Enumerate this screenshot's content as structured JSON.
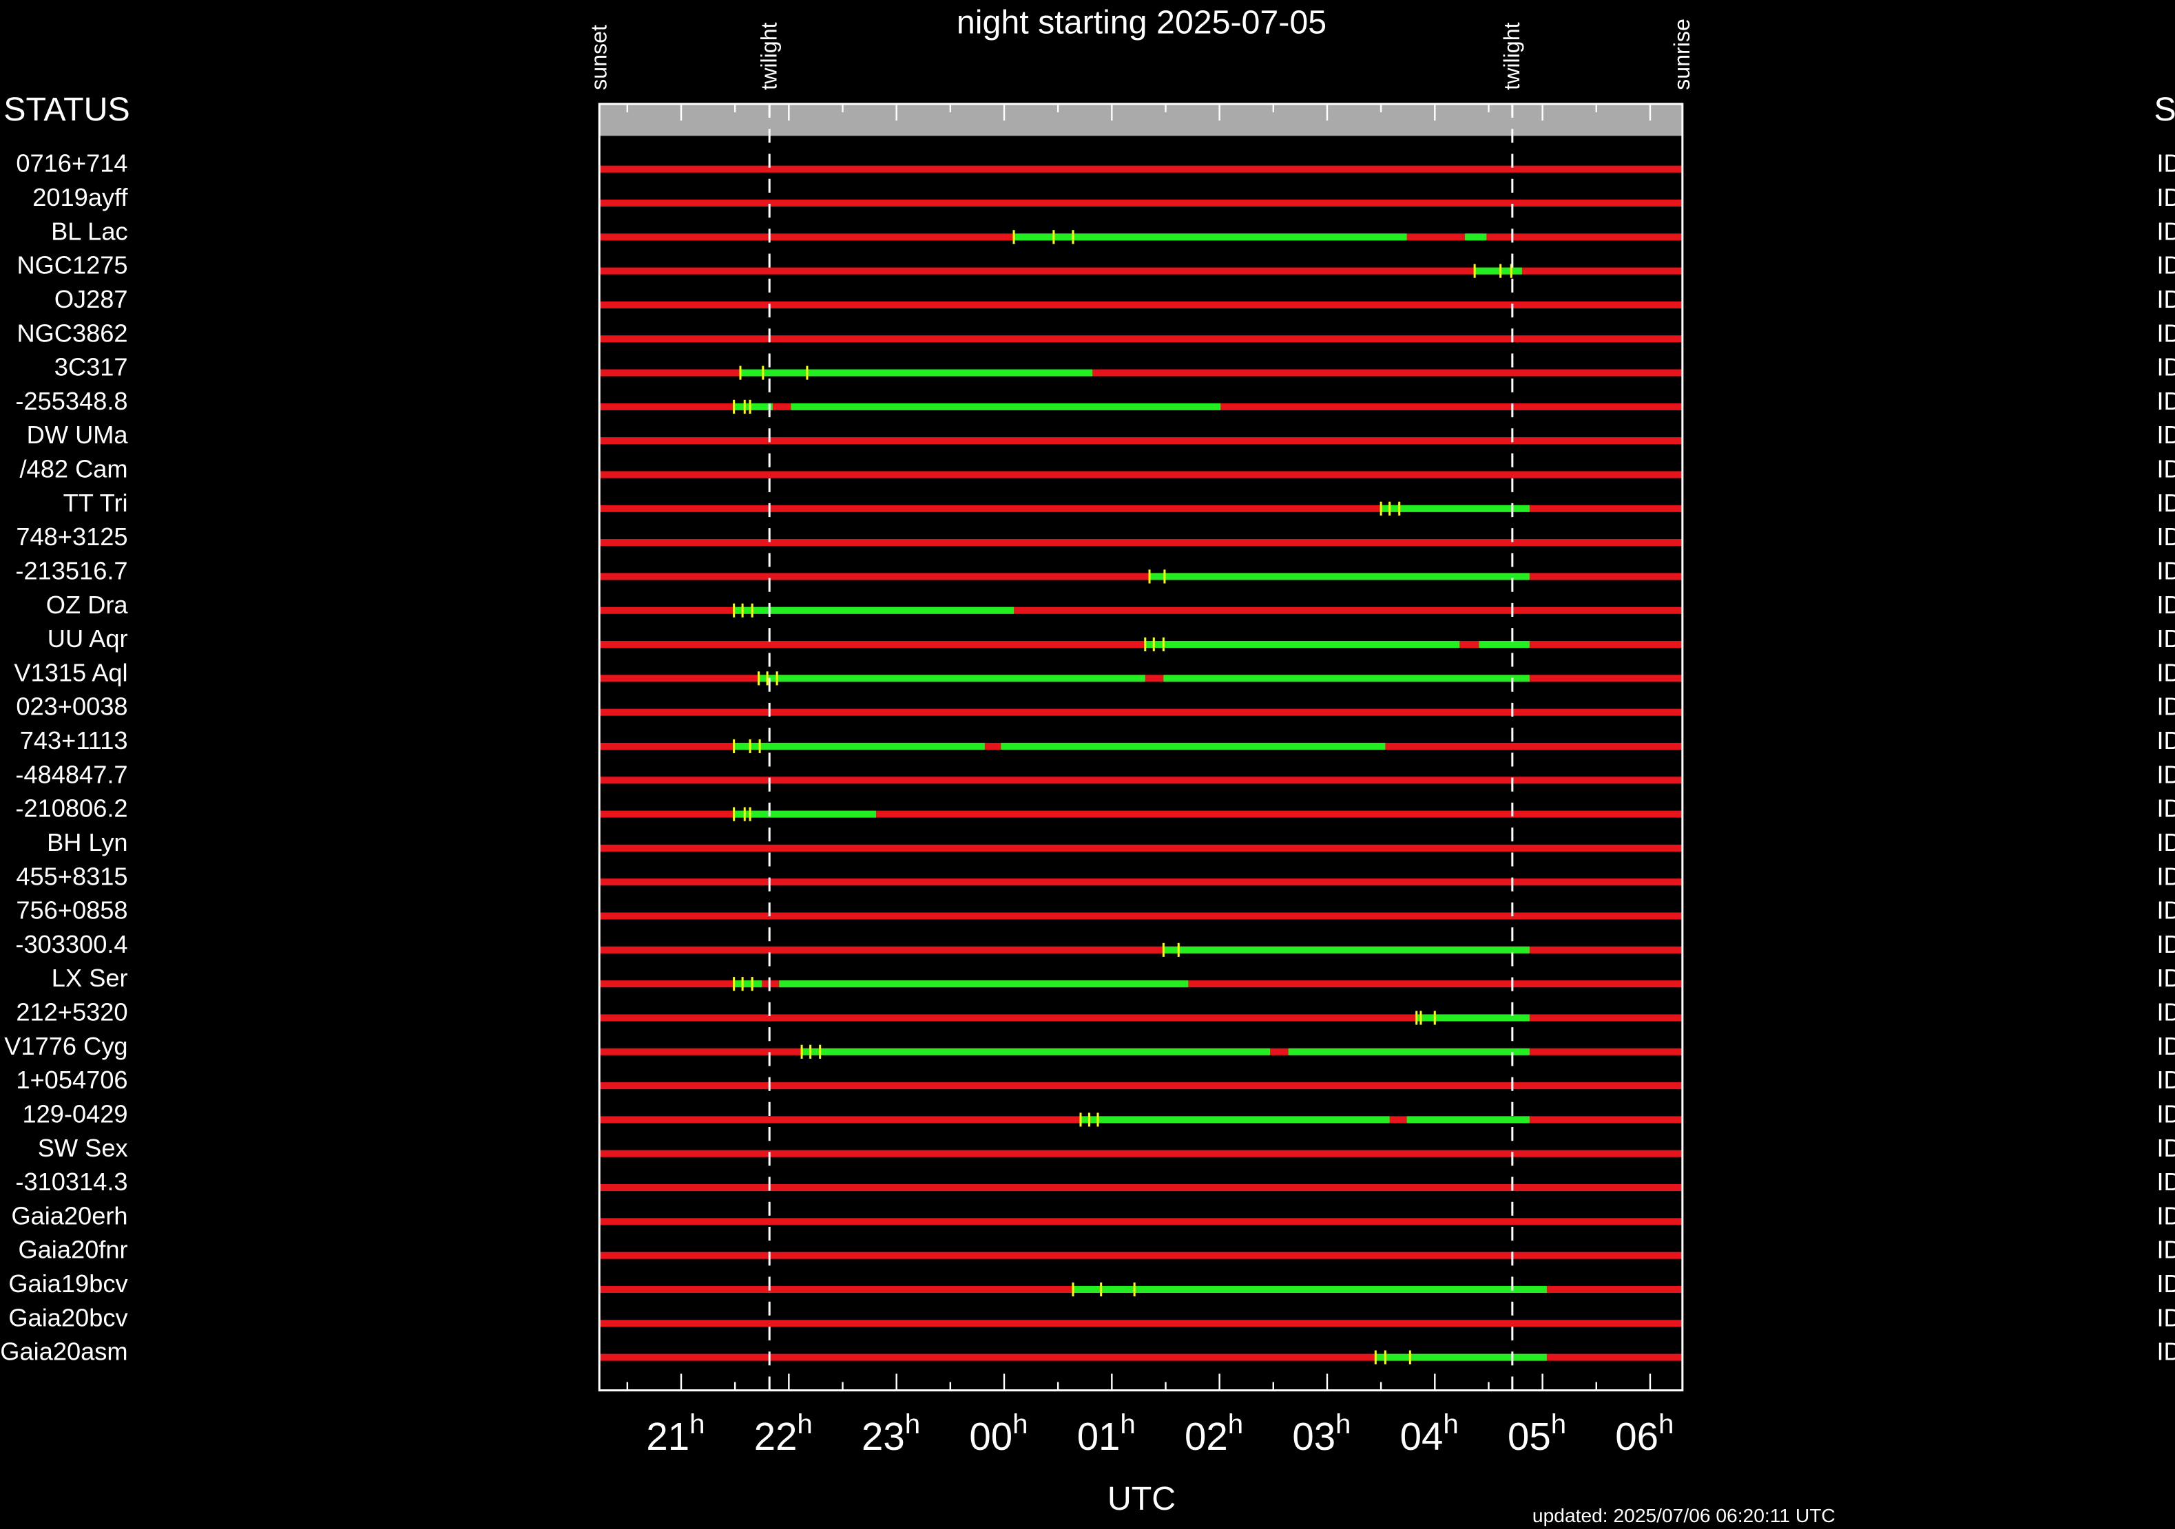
{
  "chart_data": {
    "type": "timeline",
    "title": "night starting 2025-07-05",
    "x_label": "UTC",
    "updated": "updated: 2025/07/06 06:20:11 UTC",
    "status_header": "STATUS",
    "tick_unit": "h",
    "xlim": [
      20.24,
      30.3
    ],
    "xticks": [
      {
        "value": 21,
        "label": "21"
      },
      {
        "value": 22,
        "label": "22"
      },
      {
        "value": 23,
        "label": "23"
      },
      {
        "value": 24,
        "label": "00"
      },
      {
        "value": 25,
        "label": "01"
      },
      {
        "value": 26,
        "label": "02"
      },
      {
        "value": 27,
        "label": "03"
      },
      {
        "value": 28,
        "label": "04"
      },
      {
        "value": 29,
        "label": "05"
      },
      {
        "value": 30,
        "label": "06"
      }
    ],
    "xminor_ticks": [
      20.5,
      21.5,
      22.5,
      23.5,
      24.5,
      25.5,
      26.5,
      27.5,
      28.5,
      29.5
    ],
    "events": [
      {
        "label": "sunset",
        "x": 20.24,
        "line": "none"
      },
      {
        "label": "twilight",
        "x": 21.82,
        "line": "dashed"
      },
      {
        "label": "twilight",
        "x": 28.72,
        "line": "dashed"
      },
      {
        "label": "sunrise",
        "x": 30.3,
        "line": "none"
      }
    ],
    "colors": {
      "unavailable": "#e8141c",
      "window": "#22ee22",
      "marker": "#ffff00",
      "band": "#aaaaaa"
    },
    "rows": [
      {
        "name": "0716+714",
        "status": "ID",
        "windows": [],
        "markers": []
      },
      {
        "name": "2019ayff",
        "status": "ID",
        "windows": [],
        "markers": []
      },
      {
        "name": "BL Lac",
        "status": "ID",
        "windows": [
          [
            24.09,
            27.74
          ],
          [
            28.28,
            28.48
          ]
        ],
        "markers": [
          24.09,
          24.46,
          24.64
        ]
      },
      {
        "name": "NGC1275",
        "status": "ID",
        "windows": [
          [
            28.37,
            28.81
          ]
        ],
        "markers": [
          28.37,
          28.61,
          28.71
        ]
      },
      {
        "name": "OJ287",
        "status": "ID",
        "windows": [],
        "markers": []
      },
      {
        "name": "NGC3862",
        "status": "ID",
        "windows": [],
        "markers": []
      },
      {
        "name": "3C317",
        "status": "ID",
        "windows": [
          [
            21.55,
            24.82
          ]
        ],
        "markers": [
          21.55,
          21.76,
          22.17
        ]
      },
      {
        "name": "-255348.8",
        "status": "ID",
        "windows": [
          [
            21.49,
            21.85
          ],
          [
            22.02,
            26.01
          ]
        ],
        "markers": [
          21.49,
          21.59,
          21.64
        ]
      },
      {
        "name": "DW UMa",
        "status": "ID",
        "windows": [],
        "markers": []
      },
      {
        "name": "/482 Cam",
        "status": "ID",
        "windows": [],
        "markers": []
      },
      {
        "name": "TT Tri",
        "status": "ID",
        "windows": [
          [
            27.5,
            28.88
          ]
        ],
        "markers": [
          27.5,
          27.58,
          27.67
        ]
      },
      {
        "name": "748+3125",
        "status": "ID",
        "windows": [],
        "markers": []
      },
      {
        "name": "-213516.7",
        "status": "ID",
        "windows": [
          [
            25.35,
            28.88
          ]
        ],
        "markers": [
          25.35,
          25.49
        ]
      },
      {
        "name": "OZ Dra",
        "status": "ID",
        "windows": [
          [
            21.49,
            24.09
          ]
        ],
        "markers": [
          21.49,
          21.57,
          21.66
        ]
      },
      {
        "name": "UU Aqr",
        "status": "ID",
        "windows": [
          [
            25.31,
            28.23
          ],
          [
            28.41,
            28.88
          ]
        ],
        "markers": [
          25.31,
          25.39,
          25.48
        ]
      },
      {
        "name": "V1315 Aql",
        "status": "ID",
        "windows": [
          [
            21.72,
            25.31
          ],
          [
            25.48,
            28.88
          ]
        ],
        "markers": [
          21.72,
          21.8,
          21.89
        ]
      },
      {
        "name": "023+0038",
        "status": "ID",
        "windows": [],
        "markers": []
      },
      {
        "name": "743+1113",
        "status": "ID",
        "windows": [
          [
            21.49,
            23.82
          ],
          [
            23.97,
            27.54
          ]
        ],
        "markers": [
          21.49,
          21.64,
          21.73
        ]
      },
      {
        "name": "-484847.7",
        "status": "ID",
        "windows": [],
        "markers": []
      },
      {
        "name": "-210806.2",
        "status": "ID",
        "windows": [
          [
            21.49,
            22.81
          ]
        ],
        "markers": [
          21.49,
          21.59,
          21.64
        ]
      },
      {
        "name": "BH Lyn",
        "status": "ID",
        "windows": [],
        "markers": []
      },
      {
        "name": "455+8315",
        "status": "ID",
        "windows": [],
        "markers": []
      },
      {
        "name": "756+0858",
        "status": "ID",
        "windows": [],
        "markers": []
      },
      {
        "name": "-303300.4",
        "status": "ID",
        "windows": [
          [
            25.48,
            28.88
          ]
        ],
        "markers": [
          25.48,
          25.62
        ]
      },
      {
        "name": "LX Ser",
        "status": "ID",
        "windows": [
          [
            21.49,
            21.75
          ],
          [
            21.91,
            25.71
          ]
        ],
        "markers": [
          21.49,
          21.57,
          21.66
        ]
      },
      {
        "name": "212+5320",
        "status": "ID",
        "windows": [
          [
            27.83,
            28.88
          ]
        ],
        "markers": [
          27.83,
          27.87,
          28.0
        ]
      },
      {
        "name": "V1776 Cyg",
        "status": "ID",
        "windows": [
          [
            22.12,
            26.47
          ],
          [
            26.64,
            28.88
          ]
        ],
        "markers": [
          22.12,
          22.2,
          22.29
        ]
      },
      {
        "name": "1+054706",
        "status": "ID",
        "windows": [],
        "markers": []
      },
      {
        "name": "129-0429",
        "status": "ID",
        "windows": [
          [
            24.71,
            27.58
          ],
          [
            27.74,
            28.88
          ]
        ],
        "markers": [
          24.71,
          24.79,
          24.87
        ]
      },
      {
        "name": "SW Sex",
        "status": "ID",
        "windows": [],
        "markers": []
      },
      {
        "name": "-310314.3",
        "status": "ID",
        "windows": [],
        "markers": []
      },
      {
        "name": "Gaia20erh",
        "status": "ID",
        "windows": [],
        "markers": []
      },
      {
        "name": "Gaia20fnr",
        "status": "ID",
        "windows": [],
        "markers": []
      },
      {
        "name": "Gaia19bcv",
        "status": "ID",
        "windows": [
          [
            24.64,
            29.04
          ]
        ],
        "markers": [
          24.64,
          24.9,
          25.21
        ]
      },
      {
        "name": "Gaia20bcv",
        "status": "ID",
        "windows": [],
        "markers": []
      },
      {
        "name": "Gaia20asm",
        "status": "ID",
        "windows": [
          [
            27.45,
            29.04
          ]
        ],
        "markers": [
          27.45,
          27.54,
          27.77
        ]
      }
    ]
  }
}
